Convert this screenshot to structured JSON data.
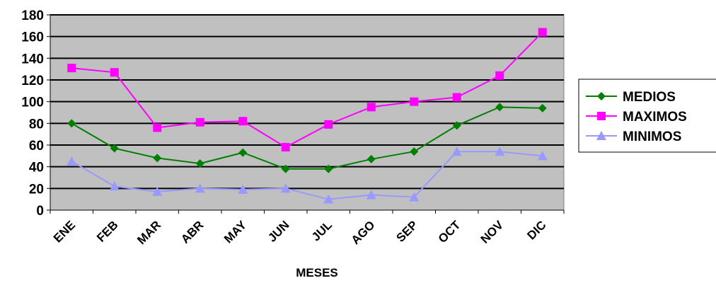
{
  "chart_data": {
    "type": "line",
    "title": "",
    "xlabel": "MESES",
    "ylabel": "",
    "categories": [
      "ENE",
      "FEB",
      "MAR",
      "ABR",
      "MAY",
      "JUN",
      "JUL",
      "AGO",
      "SEP",
      "OCT",
      "NOV",
      "DIC"
    ],
    "ylim": [
      0,
      180
    ],
    "yticks": [
      0,
      20,
      40,
      60,
      80,
      100,
      120,
      140,
      160,
      180
    ],
    "grid": true,
    "plot_background": "#c0c0c0",
    "legend_position": "right",
    "series": [
      {
        "name": "MEDIOS",
        "color": "#008000",
        "marker": "diamond",
        "values": [
          80,
          57,
          48,
          43,
          53,
          38,
          38,
          47,
          54,
          78,
          95,
          94
        ]
      },
      {
        "name": "MAXIMOS",
        "color": "#ff00ff",
        "marker": "square",
        "values": [
          131,
          127,
          76,
          81,
          82,
          58,
          79,
          95,
          100,
          104,
          124,
          164
        ]
      },
      {
        "name": "MINIMOS",
        "color": "#9999ff",
        "marker": "triangle",
        "values": [
          45,
          22,
          17,
          20,
          19,
          20,
          10,
          14,
          12,
          54,
          54,
          50
        ]
      }
    ]
  }
}
